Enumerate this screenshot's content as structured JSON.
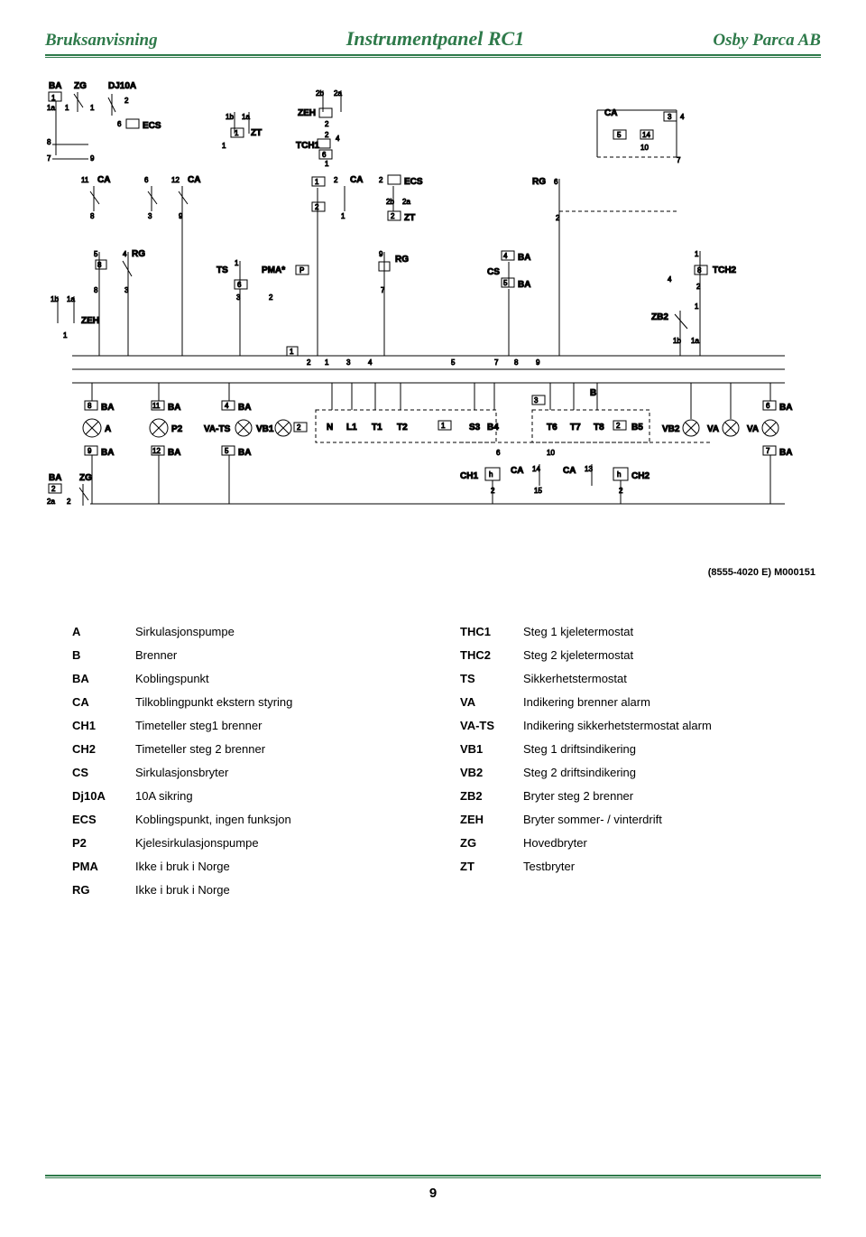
{
  "header": {
    "left": "Bruksanvisning",
    "center": "Instrumentpanel RC1",
    "right": "Osby Parca AB"
  },
  "colors": {
    "accent": "#2e7a4a",
    "text": "#000000",
    "background": "#ffffff",
    "line": "#000000"
  },
  "diagram": {
    "reference": "(8555-4020 E) M000151",
    "labels": {
      "BA": "BA",
      "ZG": "ZG",
      "DJ10A": "DJ10A",
      "ECS": "ECS",
      "ZT": "ZT",
      "ZEH": "ZEH",
      "TCH1": "TCH1",
      "CA": "CA",
      "RG": "RG",
      "TS": "TS",
      "PMA": "PMA*",
      "CS": "CS",
      "TCH2": "TCH2",
      "ZB2": "ZB2",
      "VB1": "VB1",
      "A": "A",
      "P2": "P2",
      "VATS": "VA-TS",
      "N": "N",
      "L1": "L1",
      "T1": "T1",
      "T2": "T2",
      "S3": "S3",
      "B4": "B4",
      "T6": "T6",
      "T7": "T7",
      "T8": "T8",
      "B5": "B5",
      "VB2": "VB2",
      "VA": "VA",
      "CH1": "CH1",
      "CH2": "CH2",
      "B": "B",
      "h": "h",
      "P": "P"
    }
  },
  "legend": {
    "left": [
      {
        "code": "A",
        "desc": "Sirkulasjonspumpe"
      },
      {
        "code": "B",
        "desc": "Brenner"
      },
      {
        "code": "BA",
        "desc": "Koblingspunkt"
      },
      {
        "code": "CA",
        "desc": "Tilkoblingpunkt ekstern styring"
      },
      {
        "code": "CH1",
        "desc": "Timeteller steg1 brenner"
      },
      {
        "code": "CH2",
        "desc": "Timeteller steg 2 brenner"
      },
      {
        "code": "CS",
        "desc": "Sirkulasjonsbryter"
      },
      {
        "code": "Dj10A",
        "desc": "10A sikring"
      },
      {
        "code": "ECS",
        "desc": "Koblingspunkt, ingen funksjon"
      },
      {
        "code": "P2",
        "desc": "Kjelesirkulasjonspumpe"
      },
      {
        "code": "PMA",
        "desc": "Ikke i bruk i Norge"
      },
      {
        "code": "RG",
        "desc": "Ikke i bruk i Norge"
      }
    ],
    "right": [
      {
        "code": "THC1",
        "desc": "Steg 1 kjeletermostat"
      },
      {
        "code": "THC2",
        "desc": "Steg 2 kjeletermostat"
      },
      {
        "code": "TS",
        "desc": "Sikkerhetstermostat"
      },
      {
        "code": "VA",
        "desc": "Indikering brenner alarm"
      },
      {
        "code": "VA-TS",
        "desc": "Indikering sikkerhetstermostat alarm"
      },
      {
        "code": "VB1",
        "desc": "Steg 1 driftsindikering"
      },
      {
        "code": "VB2",
        "desc": "Steg 2 driftsindikering"
      },
      {
        "code": "ZB2",
        "desc": "Bryter steg 2 brenner"
      },
      {
        "code": "ZEH",
        "desc": "Bryter sommer- / vinterdrift"
      },
      {
        "code": "ZG",
        "desc": "Hovedbryter"
      },
      {
        "code": "ZT",
        "desc": "Testbryter"
      }
    ]
  },
  "footer": {
    "page": "9"
  },
  "typography": {
    "header_fontsize_pt": 16,
    "legend_fontsize_pt": 10,
    "pagenum_fontsize_pt": 12
  }
}
